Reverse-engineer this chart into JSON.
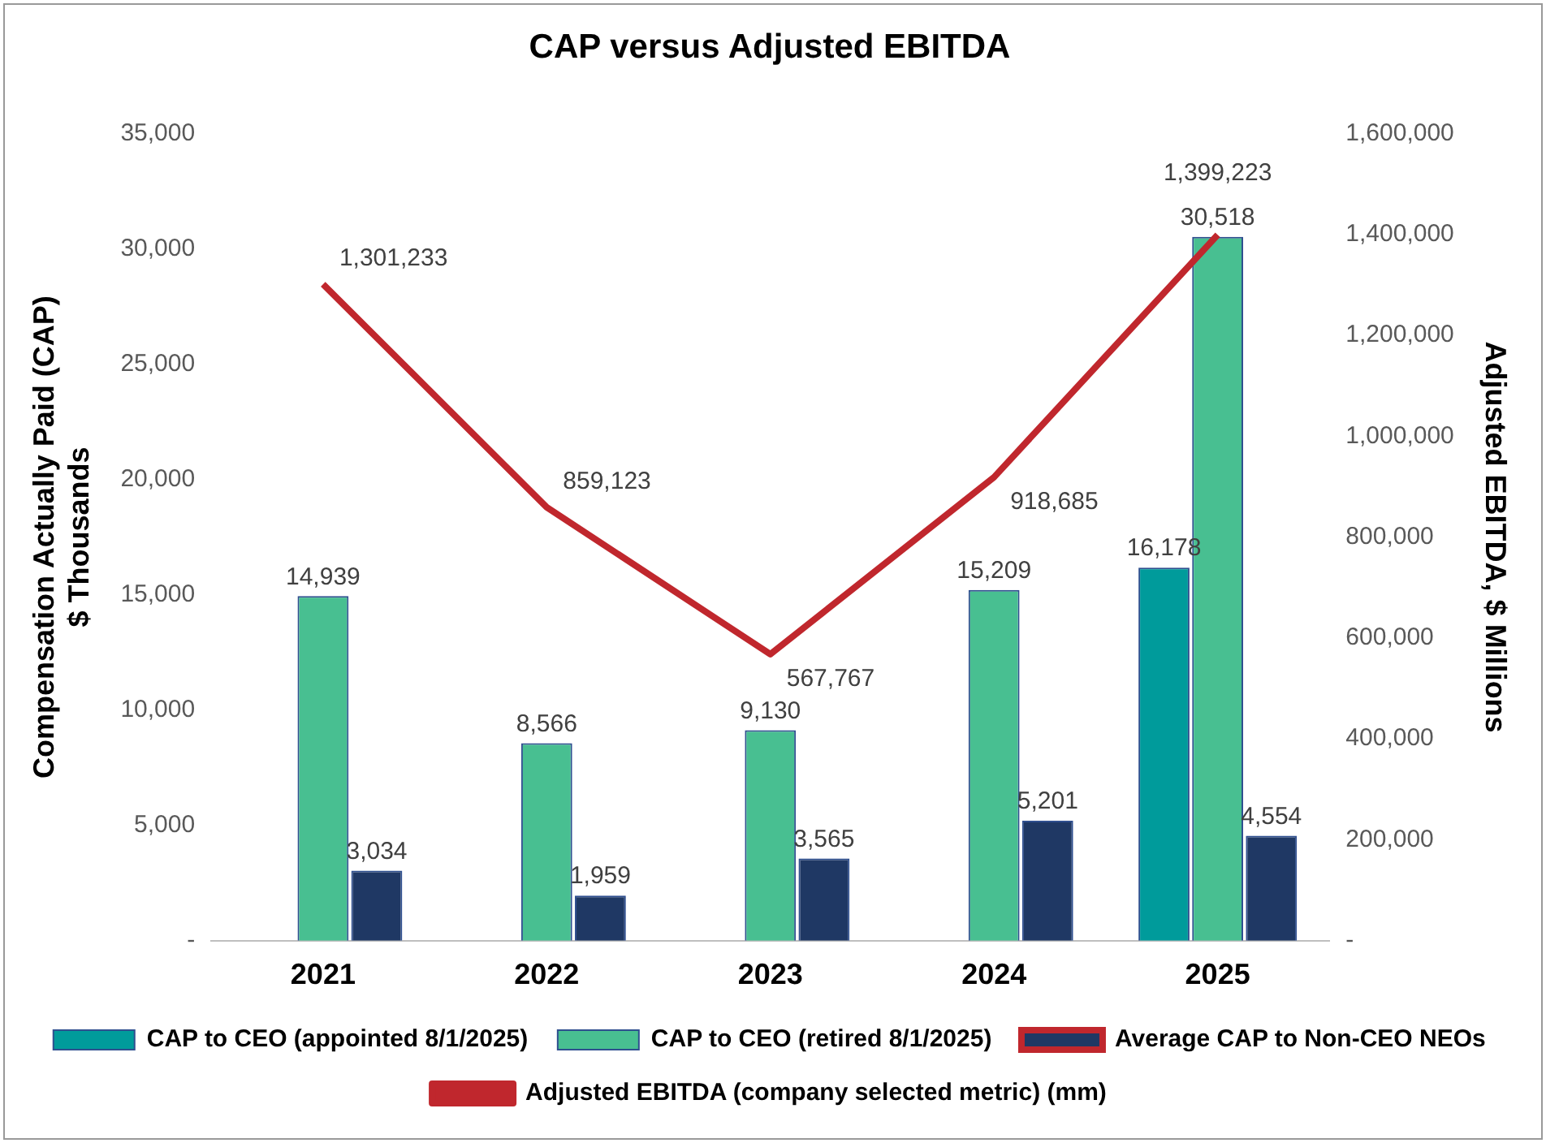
{
  "chart_data": {
    "type": "bar",
    "title": "CAP versus Adjusted EBITDA",
    "ylabel": "Compensation Actually Paid (CAP)\n$ Thousands",
    "y2label": "Adjusted EBITDA, $ Millions",
    "categories": [
      "2021",
      "2022",
      "2023",
      "2024",
      "2025"
    ],
    "series": [
      {
        "name": "CAP to CEO (appointed 8/1/2025)",
        "color": "#009b9b",
        "values": [
          null,
          null,
          null,
          null,
          16178
        ],
        "value_labels": [
          null,
          null,
          null,
          null,
          "16,178"
        ]
      },
      {
        "name": "CAP to CEO (retired 8/1/2025)",
        "color": "#48bf91",
        "values": [
          14939,
          8566,
          9130,
          15209,
          30518
        ],
        "value_labels": [
          "14,939",
          "8,566",
          "9,130",
          "15,209",
          "30,518"
        ]
      },
      {
        "name": "Average CAP to Non-CEO NEOs",
        "color": "#1f3864",
        "values": [
          3034,
          1959,
          3565,
          5201,
          4554
        ],
        "value_labels": [
          "3,034",
          "1,959",
          "3,565",
          "5,201",
          "4,554"
        ]
      },
      {
        "name": "Adjusted EBITDA (company selected metric) (mm)",
        "type": "line",
        "axis": "y2",
        "color": "#c0272d",
        "values": [
          1301233,
          859123,
          567767,
          918685,
          1399223
        ],
        "value_labels": [
          "1,301,233",
          "859,123",
          "567,767",
          "918,685",
          "1,399,223"
        ]
      }
    ],
    "ylim": [
      0,
      35000
    ],
    "yticks": [
      {
        "value": 0,
        "label": "-"
      },
      {
        "value": 5000,
        "label": "5,000"
      },
      {
        "value": 10000,
        "label": "10,000"
      },
      {
        "value": 15000,
        "label": "15,000"
      },
      {
        "value": 20000,
        "label": "20,000"
      },
      {
        "value": 25000,
        "label": "25,000"
      },
      {
        "value": 30000,
        "label": "30,000"
      },
      {
        "value": 35000,
        "label": "35,000"
      }
    ],
    "y2lim": [
      0,
      1600000
    ],
    "y2ticks": [
      {
        "value": 0,
        "label": "-"
      },
      {
        "value": 200000,
        "label": "200,000"
      },
      {
        "value": 400000,
        "label": "400,000"
      },
      {
        "value": 600000,
        "label": "600,000"
      },
      {
        "value": 800000,
        "label": "800,000"
      },
      {
        "value": 1000000,
        "label": "1,000,000"
      },
      {
        "value": 1200000,
        "label": "1,200,000"
      },
      {
        "value": 1400000,
        "label": "1,400,000"
      },
      {
        "value": 1600000,
        "label": "1,600,000"
      }
    ],
    "grid": false,
    "legend": "bottom",
    "marker": "none",
    "line_style": "solid"
  }
}
